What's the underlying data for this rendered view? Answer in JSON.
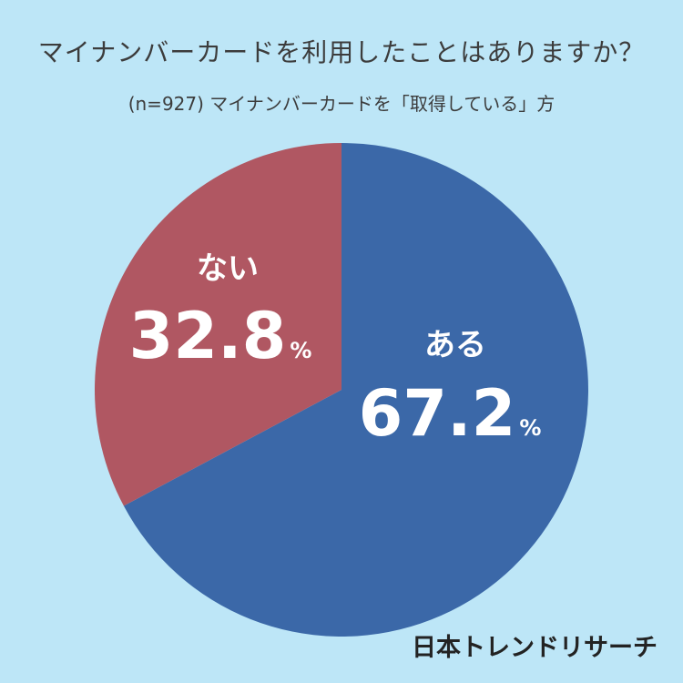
{
  "title": "マイナンバーカードを利用したことはありますか？",
  "subtitle": "(n=927) マイナンバーカードを「取得している」方",
  "brand": "日本トレンドリサーチ",
  "chart_data": {
    "type": "pie",
    "slices": [
      {
        "label": "ある",
        "value": 67.2,
        "value_text": "67.2",
        "unit": "%",
        "color": "#3b68a8"
      },
      {
        "label": "ない",
        "value": 32.8,
        "value_text": "32.8",
        "unit": "%",
        "color": "#b05762"
      }
    ],
    "start": "12 o'clock",
    "direction": "clockwise"
  }
}
